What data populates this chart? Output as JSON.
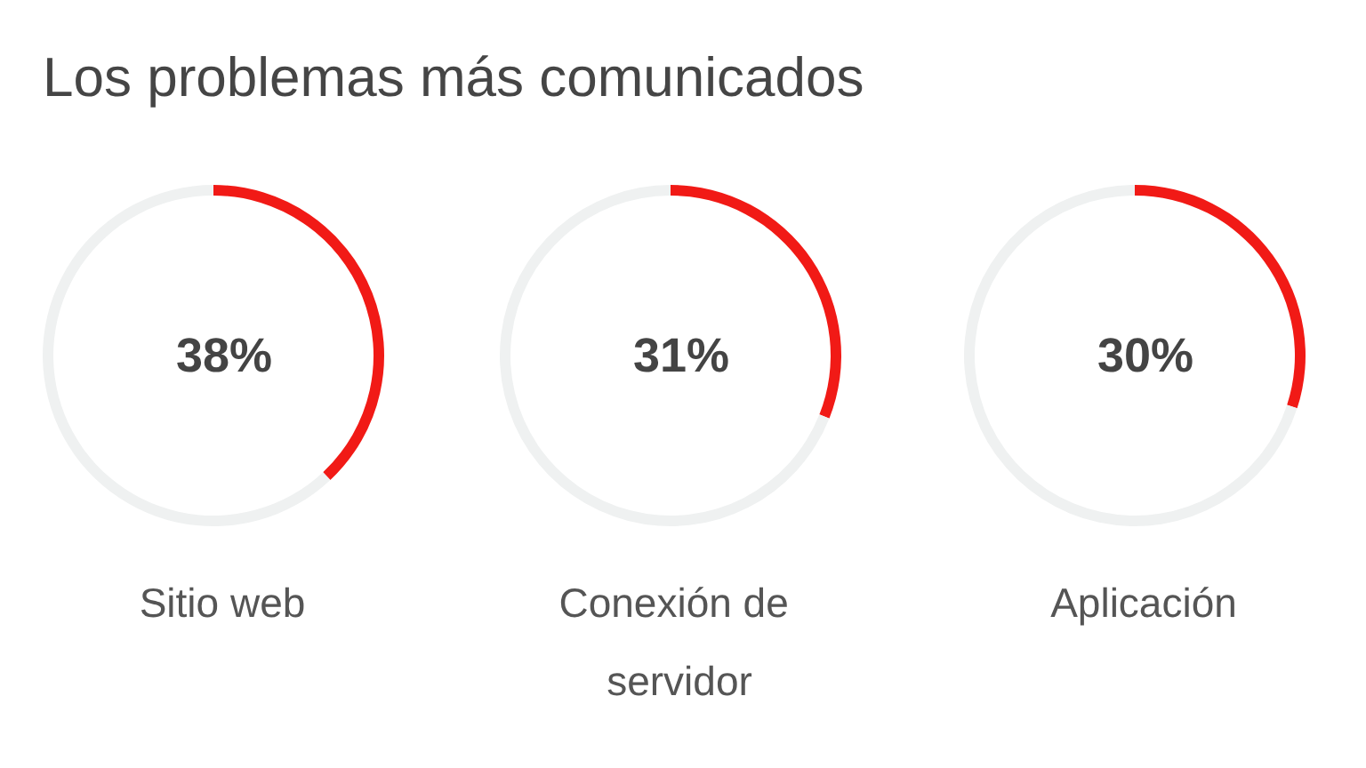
{
  "chart_data": [
    {
      "type": "donut",
      "title": "Los problemas más comunicados",
      "xlabel": "Sitio web",
      "categories": [
        null,
        null
      ],
      "values": [
        38,
        62
      ],
      "colors": [
        "#f11a16",
        "#eff1f1"
      ],
      "value_labels": [
        "38%",
        null
      ]
    },
    {
      "type": "donut",
      "xlabel": "Conexión de servidor",
      "categories": [
        null,
        null
      ],
      "values": [
        31,
        69
      ],
      "colors": [
        "#f11a16",
        "#eff1f1"
      ],
      "value_labels": [
        "31%",
        null
      ]
    },
    {
      "type": "donut",
      "xlabel": "Aplicación",
      "categories": [
        null,
        null
      ],
      "values": [
        30,
        70
      ],
      "colors": [
        "#f11a16",
        "#eff1f1"
      ],
      "value_labels": [
        "30%",
        null
      ]
    }
  ]
}
